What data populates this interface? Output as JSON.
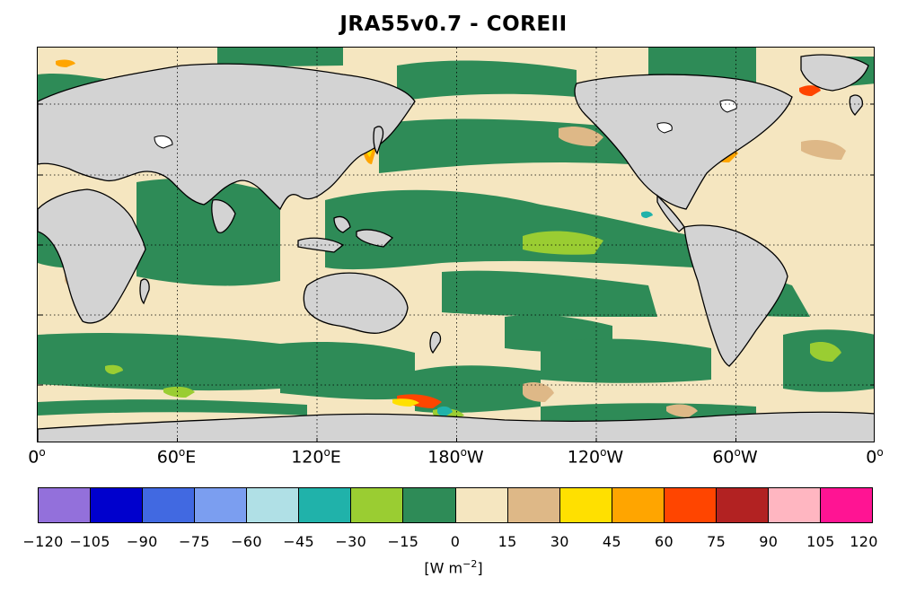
{
  "title": "JRA55v0.7 - COREII",
  "lon_labels": [
    {
      "deg": "0",
      "sup": "o",
      "hemi": ""
    },
    {
      "deg": "60",
      "sup": "o",
      "hemi": "E"
    },
    {
      "deg": "120",
      "sup": "o",
      "hemi": "E"
    },
    {
      "deg": "180",
      "sup": "o",
      "hemi": "W"
    },
    {
      "deg": "120",
      "sup": "o",
      "hemi": "W"
    },
    {
      "deg": "60",
      "sup": "o",
      "hemi": "W"
    },
    {
      "deg": "0",
      "sup": "o",
      "hemi": ""
    }
  ],
  "colorbar": {
    "colors": [
      "#9370DB",
      "#0000CD",
      "#4169E1",
      "#7B9EF0",
      "#B0E0E6",
      "#20B2AA",
      "#9ACD32",
      "#2E8B57",
      "#F5E6C0",
      "#DEB887",
      "#FFE000",
      "#FFA500",
      "#FF4500",
      "#B22222",
      "#FFB6C1",
      "#FF1493"
    ],
    "labels": [
      "−120",
      "−105",
      "−90",
      "−75",
      "−60",
      "−45",
      "−30",
      "−15",
      "0",
      "15",
      "30",
      "45",
      "60",
      "75",
      "90",
      "105",
      "120"
    ]
  },
  "units": {
    "prefix": "[W m",
    "sup": "−2",
    "suffix": "]"
  },
  "map_colors": {
    "land": "#D3D3D3",
    "neg15": "#2E8B57",
    "pos0": "#F5E6C0",
    "pos15": "#DEB887",
    "neg30": "#9ACD32",
    "pos30": "#FFE000",
    "pos45": "#FFA500",
    "pos60": "#FF4500",
    "neg45": "#20B2AA"
  }
}
